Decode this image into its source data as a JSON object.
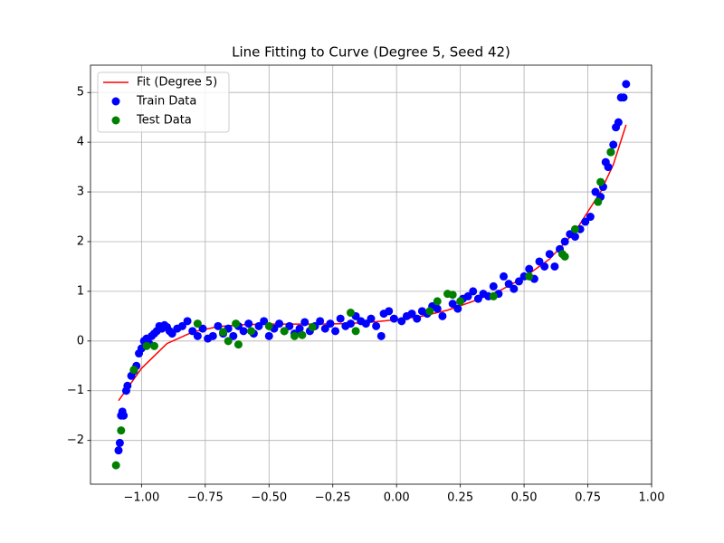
{
  "chart_data": {
    "type": "scatter",
    "title": "Line Fitting to Curve (Degree 5, Seed 42)",
    "xlim": [
      -1.2,
      1.0
    ],
    "ylim": [
      -2.88,
      5.55
    ],
    "xticks": [
      {
        "value": -1,
        "label": "−1.00"
      },
      {
        "value": -0.75,
        "label": "−0.75"
      },
      {
        "value": -0.5,
        "label": "−0.50"
      },
      {
        "value": -0.25,
        "label": "−0.25"
      },
      {
        "value": 0,
        "label": "0.00"
      },
      0.25,
      {
        "value": 0.5,
        "label": "0.50"
      },
      0.75,
      {
        "value": 1,
        "label": "1.00"
      }
    ],
    "yticks": [
      {
        "value": -2,
        "label": "−2"
      },
      {
        "value": -1,
        "label": "−1"
      },
      0,
      1,
      2,
      3,
      4,
      5
    ],
    "grid": true,
    "legend": "upper-left",
    "series": [
      {
        "name": "Fit (Degree 5)",
        "type": "line",
        "color": "#ff0000",
        "x": [
          -1.09,
          -1.0,
          -0.9,
          -0.8,
          -0.7,
          -0.6,
          -0.5,
          -0.4,
          -0.3,
          -0.2,
          -0.1,
          0.0,
          0.1,
          0.2,
          0.3,
          0.4,
          0.5,
          0.6,
          0.7,
          0.8,
          0.85,
          0.9
        ],
        "values": [
          -1.2,
          -0.55,
          -0.05,
          0.18,
          0.29,
          0.33,
          0.34,
          0.34,
          0.34,
          0.35,
          0.38,
          0.43,
          0.5,
          0.62,
          0.8,
          1.0,
          1.28,
          1.65,
          2.2,
          3.0,
          3.55,
          4.35
        ]
      },
      {
        "name": "Train Data",
        "type": "scatter",
        "color": "#0000ff",
        "x": [
          -1.09,
          -1.085,
          -1.08,
          -1.075,
          -1.07,
          -1.06,
          -1.055,
          -1.04,
          -1.03,
          -1.02,
          -1.01,
          -1.0,
          -0.99,
          -0.98,
          -0.97,
          -0.96,
          -0.95,
          -0.94,
          -0.93,
          -0.92,
          -0.91,
          -0.9,
          -0.89,
          -0.88,
          -0.86,
          -0.84,
          -0.82,
          -0.8,
          -0.78,
          -0.76,
          -0.74,
          -0.72,
          -0.7,
          -0.68,
          -0.66,
          -0.64,
          -0.62,
          -0.6,
          -0.58,
          -0.56,
          -0.54,
          -0.52,
          -0.5,
          -0.48,
          -0.46,
          -0.44,
          -0.42,
          -0.4,
          -0.38,
          -0.36,
          -0.34,
          -0.32,
          -0.3,
          -0.28,
          -0.26,
          -0.24,
          -0.22,
          -0.2,
          -0.18,
          -0.16,
          -0.14,
          -0.12,
          -0.1,
          -0.08,
          -0.06,
          -0.05,
          -0.03,
          -0.01,
          0.02,
          0.04,
          0.06,
          0.08,
          0.1,
          0.12,
          0.14,
          0.16,
          0.18,
          0.22,
          0.24,
          0.26,
          0.28,
          0.3,
          0.32,
          0.34,
          0.36,
          0.38,
          0.4,
          0.42,
          0.44,
          0.46,
          0.48,
          0.5,
          0.52,
          0.54,
          0.56,
          0.58,
          0.6,
          0.62,
          0.64,
          0.66,
          0.68,
          0.7,
          0.72,
          0.74,
          0.76,
          0.78,
          0.8,
          0.81,
          0.82,
          0.83,
          0.84,
          0.85,
          0.86,
          0.87,
          0.88,
          0.89,
          0.9
        ],
        "values": [
          -2.2,
          -2.05,
          -1.5,
          -1.42,
          -1.5,
          -1.0,
          -0.9,
          -0.7,
          -0.6,
          -0.5,
          -0.25,
          -0.15,
          0.0,
          0.05,
          -0.05,
          0.1,
          0.15,
          0.2,
          0.3,
          0.25,
          0.32,
          0.28,
          0.2,
          0.15,
          0.25,
          0.3,
          0.4,
          0.2,
          0.1,
          0.25,
          0.05,
          0.1,
          0.3,
          0.15,
          0.25,
          0.1,
          0.3,
          0.2,
          0.35,
          0.15,
          0.3,
          0.4,
          0.1,
          0.25,
          0.35,
          0.2,
          0.3,
          0.15,
          0.25,
          0.38,
          0.2,
          0.3,
          0.4,
          0.25,
          0.35,
          0.2,
          0.45,
          0.3,
          0.35,
          0.5,
          0.4,
          0.35,
          0.45,
          0.3,
          0.1,
          0.55,
          0.6,
          0.45,
          0.4,
          0.5,
          0.55,
          0.45,
          0.6,
          0.55,
          0.7,
          0.65,
          0.5,
          0.75,
          0.65,
          0.85,
          0.9,
          1.0,
          0.85,
          0.95,
          0.9,
          1.1,
          0.95,
          1.3,
          1.15,
          1.05,
          1.2,
          1.3,
          1.45,
          1.25,
          1.6,
          1.5,
          1.75,
          1.5,
          1.85,
          2.0,
          2.15,
          2.1,
          2.25,
          2.4,
          2.5,
          3.0,
          2.9,
          3.1,
          3.6,
          3.5,
          3.8,
          3.95,
          4.3,
          4.4,
          4.9,
          4.9,
          5.17
        ]
      },
      {
        "name": "Test Data",
        "type": "scatter",
        "color": "#008000",
        "x": [
          -1.1,
          -1.08,
          -1.03,
          -0.98,
          -0.95,
          -0.78,
          -0.68,
          -0.66,
          -0.63,
          -0.62,
          -0.57,
          -0.5,
          -0.44,
          -0.4,
          -0.37,
          -0.33,
          -0.18,
          -0.16,
          0.13,
          0.16,
          0.2,
          0.22,
          0.25,
          0.38,
          0.52,
          0.65,
          0.66,
          0.7,
          0.79,
          0.8,
          0.84
        ],
        "values": [
          -2.5,
          -1.8,
          -0.58,
          -0.1,
          -0.1,
          0.35,
          0.18,
          0.0,
          0.35,
          -0.07,
          0.2,
          0.3,
          0.2,
          0.1,
          0.12,
          0.28,
          0.57,
          0.2,
          0.6,
          0.8,
          0.95,
          0.93,
          0.8,
          0.9,
          1.3,
          1.75,
          1.7,
          2.25,
          2.8,
          3.2,
          3.8
        ]
      }
    ]
  }
}
